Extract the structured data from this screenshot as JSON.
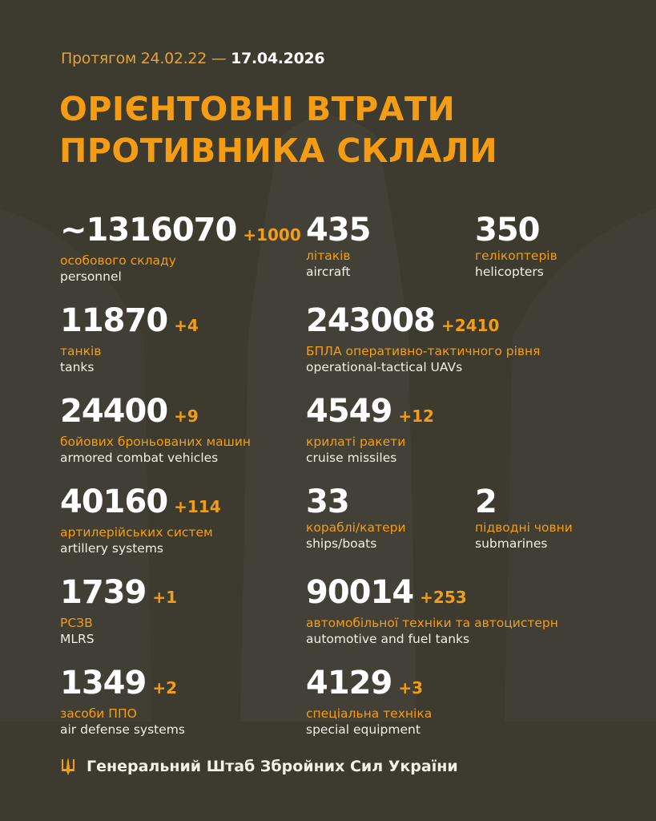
{
  "header": {
    "period_prefix": "Протягом 24.02.22 —",
    "period_end": "17.04.2026",
    "title_line1": "ОРІЄНТОВНІ ВТРАТИ",
    "title_line2": "ПРОТИВНИКА СКЛАЛИ"
  },
  "stats": [
    {
      "value": "~1316070",
      "delta": "+1000",
      "ua": "особового складу",
      "en": "personnel"
    },
    {
      "value": "435",
      "delta": "",
      "ua": "літаків",
      "en": "aircraft"
    },
    {
      "value": "350",
      "delta": "",
      "ua": "гелікоптерів",
      "en": "helicopters"
    },
    {
      "value": "11870",
      "delta": "+4",
      "ua": "танків",
      "en": "tanks"
    },
    {
      "value": "243008",
      "delta": "+2410",
      "ua": "БПЛА оперативно-тактичного рівня",
      "en": "operational-tactical UAVs"
    },
    {
      "value": "24400",
      "delta": "+9",
      "ua": "бойових броньованих машин",
      "en": "armored combat vehicles"
    },
    {
      "value": "4549",
      "delta": "+12",
      "ua": "крилаті ракети",
      "en": "cruise missiles"
    },
    {
      "value": "40160",
      "delta": "+114",
      "ua": "артилерійських систем",
      "en": "artillery systems"
    },
    {
      "value": "33",
      "delta": "",
      "ua": "кораблі/катери",
      "en": "ships/boats"
    },
    {
      "value": "2",
      "delta": "",
      "ua": "підводні човни",
      "en": "submarines"
    },
    {
      "value": "1739",
      "delta": "+1",
      "ua": "РСЗВ",
      "en": "MLRS"
    },
    {
      "value": "90014",
      "delta": "+253",
      "ua": "автомобільної техніки та автоцистерн",
      "en": "automotive and fuel tanks"
    },
    {
      "value": "1349",
      "delta": "+2",
      "ua": "засоби ППО",
      "en": "air defense systems"
    },
    {
      "value": "4129",
      "delta": "+3",
      "ua": "спеціальна техніка",
      "en": "special equipment"
    }
  ],
  "footer": {
    "icon": "trident-icon",
    "text": "Генеральний Штаб Збройних Сил України"
  },
  "colors": {
    "background": "#3d3a2f",
    "accent": "#f49d14",
    "text": "#ffffff"
  }
}
